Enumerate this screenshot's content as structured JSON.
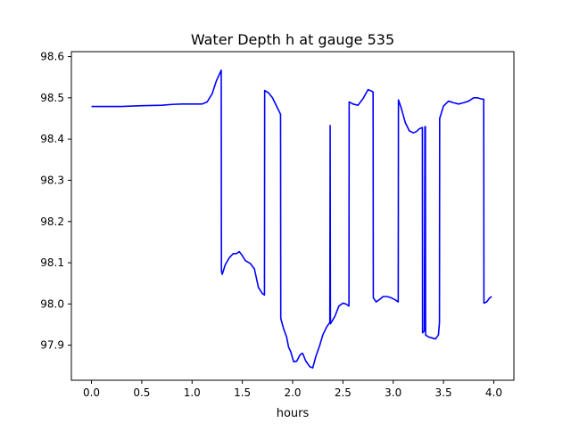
{
  "chart_data": {
    "type": "line",
    "title": "Water Depth h at gauge 535",
    "xlabel": "hours",
    "ylabel": "",
    "xlim": [
      -0.2,
      4.2
    ],
    "ylim": [
      97.815,
      98.612
    ],
    "xticks": [
      0.0,
      0.5,
      1.0,
      1.5,
      2.0,
      2.5,
      3.0,
      3.5,
      4.0
    ],
    "xtick_labels": [
      "0.0",
      "0.5",
      "1.0",
      "1.5",
      "2.0",
      "2.5",
      "3.0",
      "3.5",
      "4.0"
    ],
    "yticks": [
      97.9,
      98.0,
      98.1,
      98.2,
      98.3,
      98.4,
      98.5,
      98.6
    ],
    "ytick_labels": [
      "97.9",
      "98.0",
      "98.1",
      "98.2",
      "98.3",
      "98.4",
      "98.5",
      "98.6"
    ],
    "grid": false,
    "legend": "none",
    "series": [
      {
        "color": "#0000ff",
        "points": [
          [
            0.0,
            98.479
          ],
          [
            0.1,
            98.479
          ],
          [
            0.3,
            98.479
          ],
          [
            0.5,
            98.481
          ],
          [
            0.7,
            98.482
          ],
          [
            0.8,
            98.484
          ],
          [
            0.9,
            98.485
          ],
          [
            1.0,
            98.485
          ],
          [
            1.1,
            98.485
          ],
          [
            1.15,
            98.49
          ],
          [
            1.2,
            98.51
          ],
          [
            1.24,
            98.54
          ],
          [
            1.29,
            98.567
          ],
          [
            1.292,
            98.08
          ],
          [
            1.3,
            98.072
          ],
          [
            1.33,
            98.095
          ],
          [
            1.37,
            98.112
          ],
          [
            1.41,
            98.122
          ],
          [
            1.44,
            98.122
          ],
          [
            1.47,
            98.127
          ],
          [
            1.5,
            98.117
          ],
          [
            1.53,
            98.105
          ],
          [
            1.58,
            98.098
          ],
          [
            1.62,
            98.085
          ],
          [
            1.66,
            98.04
          ],
          [
            1.7,
            98.025
          ],
          [
            1.72,
            98.022
          ],
          [
            1.722,
            98.518
          ],
          [
            1.76,
            98.512
          ],
          [
            1.8,
            98.5
          ],
          [
            1.84,
            98.48
          ],
          [
            1.88,
            98.46
          ],
          [
            1.882,
            97.965
          ],
          [
            1.91,
            97.94
          ],
          [
            1.94,
            97.92
          ],
          [
            1.96,
            97.895
          ],
          [
            1.98,
            97.885
          ],
          [
            2.0,
            97.868
          ],
          [
            2.01,
            97.86
          ],
          [
            2.04,
            97.861
          ],
          [
            2.07,
            97.875
          ],
          [
            2.09,
            97.88
          ],
          [
            2.1,
            97.88
          ],
          [
            2.13,
            97.862
          ],
          [
            2.17,
            97.848
          ],
          [
            2.2,
            97.845
          ],
          [
            2.23,
            97.872
          ],
          [
            2.27,
            97.9
          ],
          [
            2.3,
            97.925
          ],
          [
            2.34,
            97.945
          ],
          [
            2.37,
            97.955
          ],
          [
            2.373,
            98.433
          ],
          [
            2.376,
            97.952
          ],
          [
            2.42,
            97.97
          ],
          [
            2.46,
            97.995
          ],
          [
            2.5,
            98.002
          ],
          [
            2.53,
            98.0
          ],
          [
            2.56,
            97.995
          ],
          [
            2.562,
            98.49
          ],
          [
            2.6,
            98.485
          ],
          [
            2.65,
            98.482
          ],
          [
            2.7,
            98.498
          ],
          [
            2.75,
            98.52
          ],
          [
            2.79,
            98.516
          ],
          [
            2.8,
            98.514
          ],
          [
            2.802,
            98.015
          ],
          [
            2.83,
            98.005
          ],
          [
            2.86,
            98.01
          ],
          [
            2.9,
            98.018
          ],
          [
            2.94,
            98.018
          ],
          [
            2.98,
            98.015
          ],
          [
            3.02,
            98.01
          ],
          [
            3.05,
            98.005
          ],
          [
            3.052,
            98.495
          ],
          [
            3.08,
            98.475
          ],
          [
            3.12,
            98.44
          ],
          [
            3.16,
            98.42
          ],
          [
            3.2,
            98.415
          ],
          [
            3.23,
            98.418
          ],
          [
            3.26,
            98.425
          ],
          [
            3.29,
            98.428
          ],
          [
            3.292,
            97.93
          ],
          [
            3.31,
            97.935
          ],
          [
            3.315,
            98.43
          ],
          [
            3.32,
            98.43
          ],
          [
            3.322,
            97.925
          ],
          [
            3.35,
            97.92
          ],
          [
            3.38,
            97.918
          ],
          [
            3.42,
            97.915
          ],
          [
            3.45,
            97.925
          ],
          [
            3.46,
            97.955
          ],
          [
            3.462,
            98.45
          ],
          [
            3.5,
            98.48
          ],
          [
            3.55,
            98.492
          ],
          [
            3.6,
            98.488
          ],
          [
            3.65,
            98.485
          ],
          [
            3.7,
            98.488
          ],
          [
            3.75,
            98.492
          ],
          [
            3.8,
            98.5
          ],
          [
            3.84,
            98.5
          ],
          [
            3.88,
            98.497
          ],
          [
            3.9,
            98.497
          ],
          [
            3.902,
            98.002
          ],
          [
            3.93,
            98.005
          ],
          [
            3.96,
            98.015
          ],
          [
            3.98,
            98.018
          ]
        ]
      }
    ]
  }
}
